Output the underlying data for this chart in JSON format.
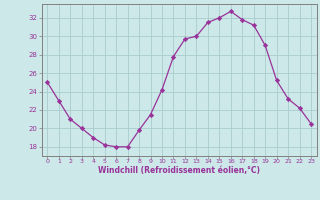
{
  "x": [
    0,
    1,
    2,
    3,
    4,
    5,
    6,
    7,
    8,
    9,
    10,
    11,
    12,
    13,
    14,
    15,
    16,
    17,
    18,
    19,
    20,
    21,
    22,
    23
  ],
  "y": [
    25.0,
    23.0,
    21.0,
    20.0,
    19.0,
    18.2,
    18.0,
    18.0,
    19.8,
    21.5,
    24.2,
    27.8,
    29.7,
    30.0,
    31.5,
    32.0,
    32.7,
    31.8,
    31.2,
    29.0,
    25.2,
    23.2,
    22.2,
    20.5
  ],
  "line_color": "#993399",
  "marker": "D",
  "marker_size": 2.2,
  "bg_color": "#cce8e8",
  "grid_color": "#aacccc",
  "xlabel": "Windchill (Refroidissement éolien,°C)",
  "xlabel_color": "#993399",
  "tick_color": "#993399",
  "ylim": [
    17.0,
    33.5
  ],
  "xlim": [
    -0.5,
    23.5
  ],
  "yticks": [
    18,
    20,
    22,
    24,
    26,
    28,
    30,
    32
  ],
  "xticks": [
    0,
    1,
    2,
    3,
    4,
    5,
    6,
    7,
    8,
    9,
    10,
    11,
    12,
    13,
    14,
    15,
    16,
    17,
    18,
    19,
    20,
    21,
    22,
    23
  ],
  "spine_color": "#808080"
}
